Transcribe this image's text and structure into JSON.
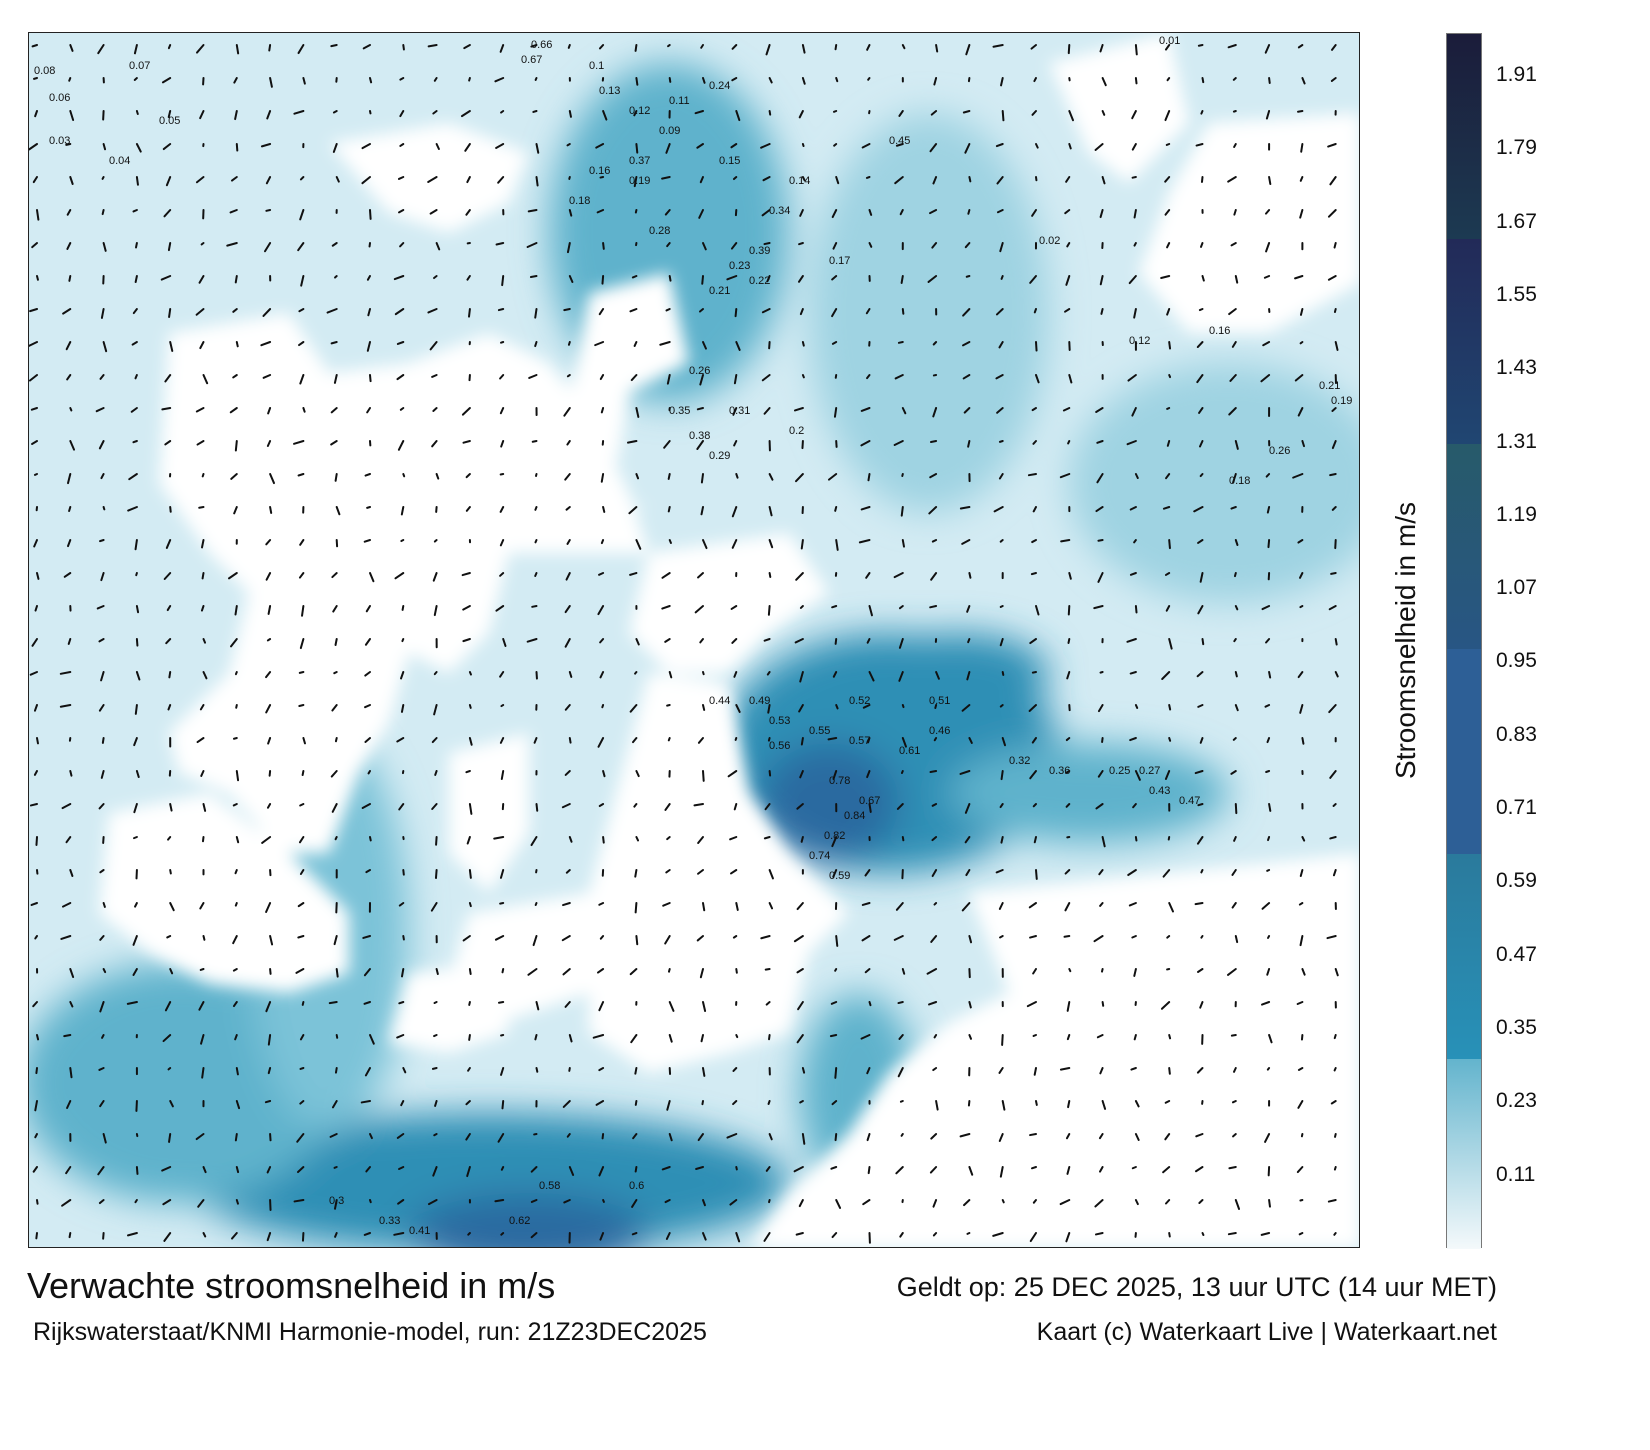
{
  "title": "Verwachte stroomsnelheid in m/s",
  "valid_time": "Geldt op: 25 DEC 2025, 13 uur UTC (14 uur MET)",
  "source": "Rijkswaterstaat/KNMI Harmonie-model, run: 21Z23DEC2025",
  "credit": "Kaart (c) Waterkaart Live | Waterkaart.net",
  "colorbar": {
    "title": "Stroomsnelheid in m/s",
    "ticks": [
      "1.91",
      "1.79",
      "1.67",
      "1.55",
      "1.43",
      "1.31",
      "1.19",
      "1.07",
      "0.95",
      "0.83",
      "0.71",
      "0.59",
      "0.47",
      "0.35",
      "0.23",
      "0.11"
    ],
    "colors": {
      "band_1_67_plus": "#1b2a45",
      "band_1_31": "#20375f",
      "band_0_95": "#2a5a80",
      "band_0_71": "#2d5f96",
      "band_0_35": "#277d9e",
      "low": "#f4f9fb",
      "mid": "#5fb2cc"
    }
  },
  "map": {
    "colors": {
      "water_light": "#d3ebf3",
      "water_mid": "#7cc3d8",
      "water_dark": "#2f8fb5",
      "channel": "#2a6aa0",
      "land": "#ffffff",
      "arrow": "#111111"
    },
    "speed_labels": [
      "0.08",
      "0.07",
      "0.06",
      "0.03",
      "0.04",
      "0.05",
      "0.1",
      "0.13",
      "0.12",
      "0.11",
      "0.09",
      "0.24",
      "0.15",
      "0.16",
      "0.19",
      "0.18",
      "0.14",
      "0.34",
      "0.39",
      "0.45",
      "0.37",
      "0.28",
      "0.21",
      "0.23",
      "0.22",
      "0.17",
      "0.35",
      "0.38",
      "0.31",
      "0.29",
      "0.26",
      "0.2",
      "0.44",
      "0.49",
      "0.53",
      "0.56",
      "0.55",
      "0.57",
      "0.52",
      "0.61",
      "0.67",
      "0.78",
      "0.84",
      "0.82",
      "0.74",
      "0.59",
      "0.46",
      "0.51",
      "0.32",
      "0.36",
      "0.25",
      "0.27",
      "0.43",
      "0.47",
      "0.62",
      "0.66",
      "0.67",
      "0.58",
      "0.6",
      "0.41",
      "0.33",
      "0.3",
      "0.02",
      "0.01",
      "0.12",
      "0.16",
      "0.21",
      "0.19",
      "0.18",
      "0.26"
    ]
  }
}
